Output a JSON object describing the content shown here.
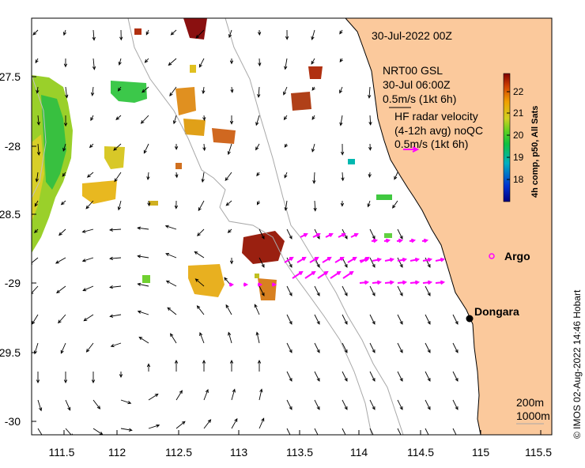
{
  "map": {
    "title": "30-Jul-2022 00Z",
    "lon_range": [
      111.3,
      115.6
    ],
    "lat_range": [
      -30.1,
      -27.1
    ],
    "x_ticks": [
      "111.5",
      "112",
      "112.5",
      "113",
      "113.5",
      "114",
      "114.5",
      "115",
      "115.5"
    ],
    "y_ticks": [
      "-27.5",
      "-28",
      "-28.5",
      "-29",
      "-29.5",
      "-30"
    ],
    "colors": {
      "land": "#fbc99c",
      "ocean": "#ffffff",
      "hf_radar": "#ff00ff",
      "isobath": "#a0a0a0"
    }
  },
  "legend": {
    "model_title": "NRT00 GSL",
    "model_time": "30-Jul 06:00Z",
    "model_scale": "0.5m/s (1kt 6h)",
    "radar_title": "HF radar velocity",
    "radar_subtitle": "(4-12h avg) noQC",
    "radar_scale": "0.5m/s (1kt 6h)"
  },
  "colorbar": {
    "label": "4h comp, p50, All Sats",
    "ticks": [
      "22",
      "21",
      "20",
      "19",
      "18"
    ],
    "range": [
      17.5,
      22.5
    ]
  },
  "places": [
    {
      "name": "Argo",
      "lon": 114.98,
      "lat": -28.9,
      "marker": "circle"
    },
    {
      "name": "Dongara",
      "lon": 114.93,
      "lat": -29.25,
      "marker": "dot"
    }
  ],
  "isobaths": [
    "200m",
    "1000m"
  ],
  "credit": "© IMOS 02-Aug-2022 14:46 Hobart"
}
